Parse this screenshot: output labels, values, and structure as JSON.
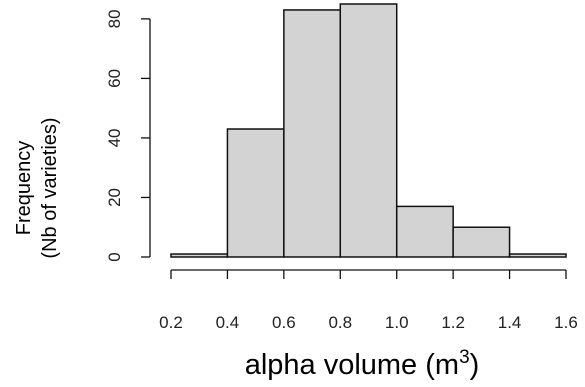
{
  "chart_data": {
    "type": "bar",
    "bins": [
      {
        "from": 0.2,
        "to": 0.4,
        "value": 1
      },
      {
        "from": 0.4,
        "to": 0.6,
        "value": 43
      },
      {
        "from": 0.6,
        "to": 0.8,
        "value": 83
      },
      {
        "from": 0.8,
        "to": 1.0,
        "value": 85
      },
      {
        "from": 1.0,
        "to": 1.2,
        "value": 17
      },
      {
        "from": 1.2,
        "to": 1.4,
        "value": 10
      },
      {
        "from": 1.4,
        "to": 1.6,
        "value": 1
      }
    ],
    "x_ticks": [
      "0.2",
      "0.4",
      "0.6",
      "0.8",
      "1.0",
      "1.2",
      "1.4",
      "1.6"
    ],
    "y_ticks": [
      "0",
      "20",
      "40",
      "60",
      "80"
    ],
    "xlim": [
      0.2,
      1.6
    ],
    "ylim": [
      0,
      85
    ],
    "xlabel": "alpha volume (m",
    "xlabel_superscript": "3",
    "xlabel_close": ")",
    "ylabel_line1": "Frequency",
    "ylabel_line2": "(Nb of varieties)",
    "bar_color": "#d3d3d3",
    "edge_color": "#111111"
  }
}
